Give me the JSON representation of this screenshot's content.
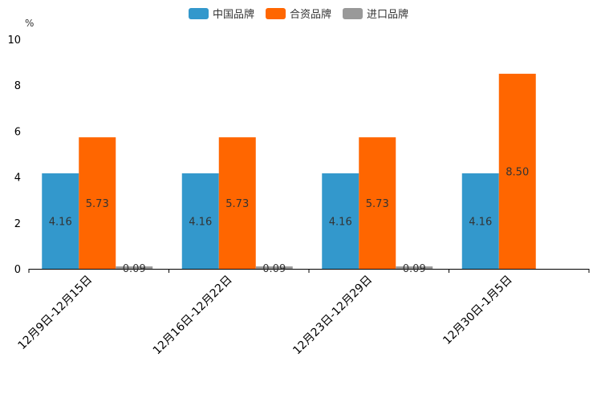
{
  "chart_data": {
    "type": "bar",
    "title": "",
    "ylabel": "%",
    "xlabel": "",
    "ylim": [
      0,
      10
    ],
    "yticks": [
      0,
      2,
      4,
      6,
      8,
      10
    ],
    "categories": [
      "12月9日-12月15日",
      "12月16日-12月22日",
      "12月23日-12月29日",
      "12月30日-1月5日"
    ],
    "series": [
      {
        "name": "中国品牌",
        "color": "#3398CC",
        "values": [
          4.16,
          4.16,
          4.16,
          4.16
        ]
      },
      {
        "name": "合资品牌",
        "color": "#FF6600",
        "values": [
          5.73,
          5.73,
          5.73,
          8.5
        ]
      },
      {
        "name": "进口品牌",
        "color": "#999999",
        "values": [
          0.09,
          0.09,
          0.09,
          null
        ]
      }
    ],
    "legend_position": "top-center"
  }
}
